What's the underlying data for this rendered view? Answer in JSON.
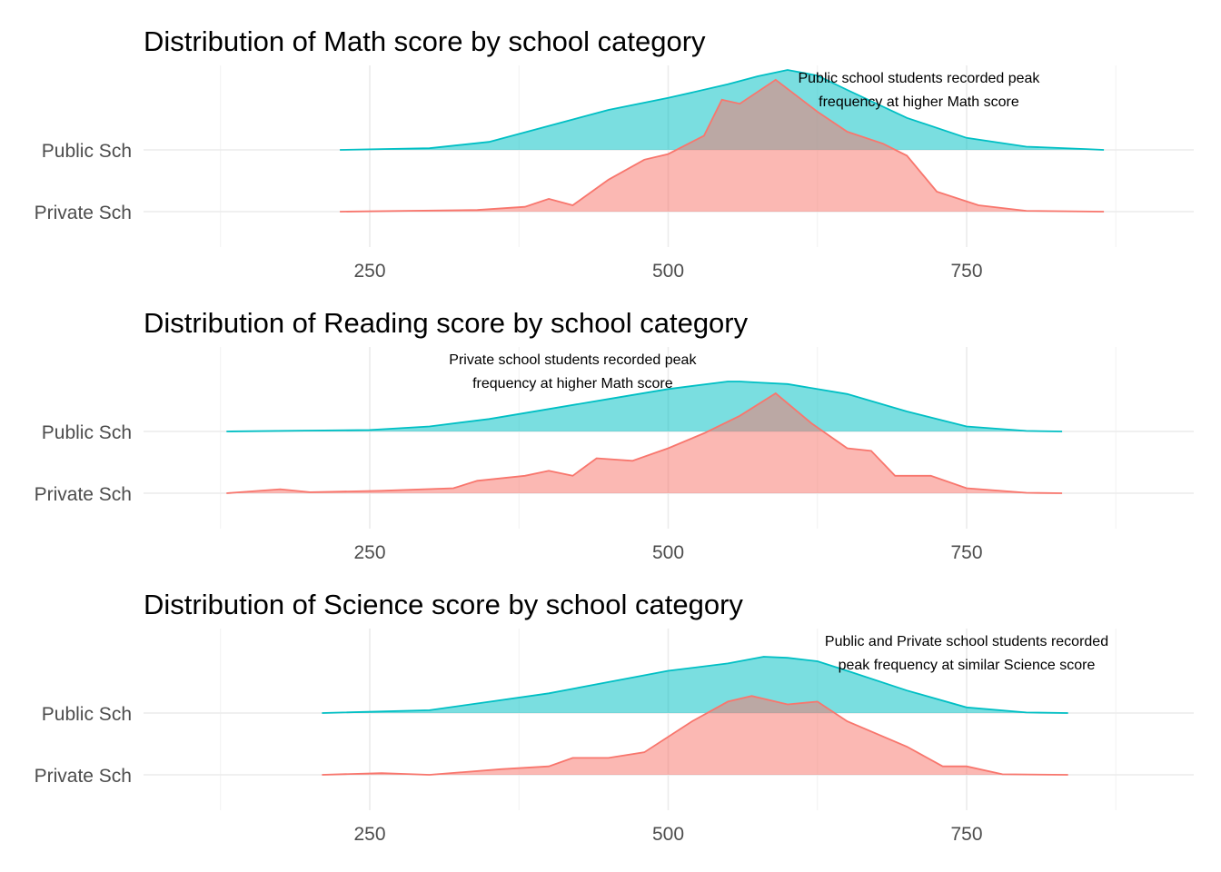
{
  "chart_data": [
    {
      "type": "area",
      "title": "Distribution of Math score by school category",
      "xlabel": "",
      "ylabel": "",
      "xlim": [
        50,
        950
      ],
      "x_ticks": [
        250,
        500,
        750
      ],
      "grid": true,
      "categories": [
        "Public Sch",
        "Private Sch"
      ],
      "annotation": {
        "lines": [
          "Public school students recorded peak",
          "frequency at higher Math score"
        ],
        "x": 710
      },
      "series": [
        {
          "name": "Public Sch",
          "color": "#00BFC4",
          "x": [
            225,
            300,
            350,
            400,
            450,
            500,
            550,
            575,
            600,
            625,
            650,
            700,
            750,
            800,
            850,
            865
          ],
          "density": [
            0.0,
            0.02,
            0.1,
            0.3,
            0.5,
            0.65,
            0.82,
            0.92,
            1.0,
            0.93,
            0.75,
            0.4,
            0.15,
            0.04,
            0.01,
            0.0
          ]
        },
        {
          "name": "Private Sch",
          "color": "#F8766D",
          "x": [
            225,
            340,
            380,
            400,
            420,
            450,
            480,
            500,
            530,
            545,
            560,
            590,
            625,
            650,
            680,
            700,
            725,
            760,
            800,
            865
          ],
          "density": [
            0.0,
            0.02,
            0.06,
            0.16,
            0.08,
            0.4,
            0.65,
            0.72,
            0.95,
            1.4,
            1.35,
            1.65,
            1.25,
            1.0,
            0.85,
            0.7,
            0.25,
            0.08,
            0.01,
            0.0
          ]
        }
      ]
    },
    {
      "type": "area",
      "title": "Distribution of Reading score by school category",
      "xlabel": "",
      "ylabel": "",
      "xlim": [
        50,
        950
      ],
      "x_ticks": [
        250,
        500,
        750
      ],
      "grid": true,
      "categories": [
        "Public Sch",
        "Private Sch"
      ],
      "annotation": {
        "lines": [
          "Private school students recorded peak",
          "frequency at higher Math score"
        ],
        "x": 420
      },
      "series": [
        {
          "name": "Public Sch",
          "color": "#00BFC4",
          "x": [
            130,
            250,
            300,
            350,
            400,
            450,
            500,
            550,
            560,
            575,
            600,
            650,
            700,
            750,
            800,
            830
          ],
          "density": [
            0.0,
            0.03,
            0.1,
            0.25,
            0.45,
            0.65,
            0.85,
            1.0,
            1.0,
            0.98,
            0.95,
            0.75,
            0.4,
            0.1,
            0.01,
            0.0
          ]
        },
        {
          "name": "Private Sch",
          "color": "#F8766D",
          "x": [
            130,
            175,
            200,
            260,
            320,
            340,
            380,
            400,
            420,
            440,
            470,
            500,
            530,
            560,
            590,
            620,
            650,
            670,
            690,
            720,
            750,
            800,
            830
          ],
          "density": [
            0.0,
            0.08,
            0.02,
            0.05,
            0.1,
            0.25,
            0.35,
            0.45,
            0.35,
            0.7,
            0.65,
            0.9,
            1.2,
            1.55,
            2.0,
            1.4,
            0.9,
            0.85,
            0.35,
            0.35,
            0.1,
            0.01,
            0.0
          ]
        }
      ]
    },
    {
      "type": "area",
      "title": "Distribution of Science score by school category",
      "xlabel": "",
      "ylabel": "",
      "xlim": [
        50,
        950
      ],
      "x_ticks": [
        250,
        500,
        750
      ],
      "grid": true,
      "categories": [
        "Public Sch",
        "Private Sch"
      ],
      "annotation": {
        "lines": [
          "Public and Private school students recorded",
          "peak frequency at similar Science score"
        ],
        "x": 750
      },
      "series": [
        {
          "name": "Public Sch",
          "color": "#00BFC4",
          "x": [
            210,
            300,
            350,
            400,
            450,
            500,
            550,
            580,
            600,
            625,
            650,
            700,
            750,
            800,
            835
          ],
          "density": [
            0.0,
            0.05,
            0.2,
            0.35,
            0.55,
            0.75,
            0.88,
            1.0,
            0.98,
            0.92,
            0.75,
            0.4,
            0.1,
            0.01,
            0.0
          ]
        },
        {
          "name": "Private Sch",
          "color": "#F8766D",
          "x": [
            210,
            260,
            300,
            360,
            400,
            420,
            450,
            480,
            520,
            550,
            570,
            600,
            625,
            650,
            700,
            730,
            750,
            780,
            835
          ],
          "density": [
            0.0,
            0.03,
            0.0,
            0.1,
            0.15,
            0.3,
            0.3,
            0.4,
            0.95,
            1.3,
            1.4,
            1.25,
            1.3,
            0.95,
            0.5,
            0.15,
            0.15,
            0.01,
            0.0
          ]
        }
      ]
    }
  ]
}
